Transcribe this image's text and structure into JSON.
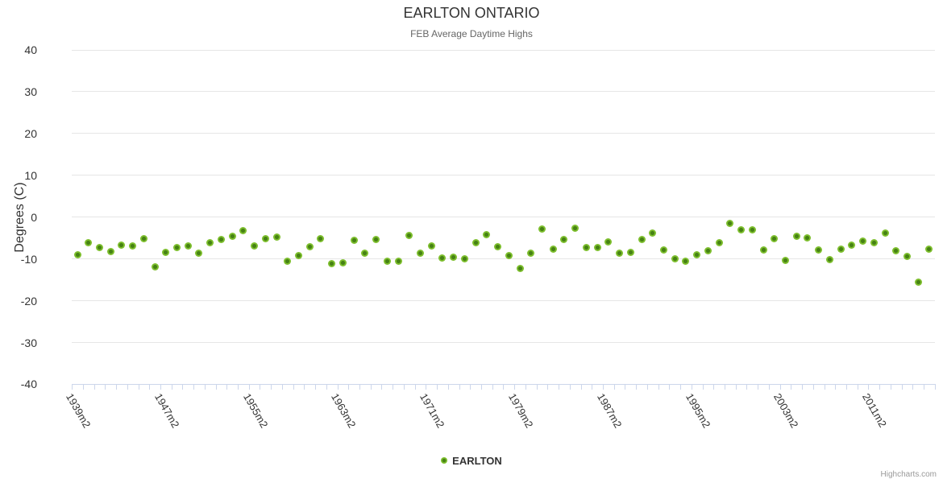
{
  "header": {
    "title": "EARLTON ONTARIO",
    "subtitle": "FEB Average Daytime Highs"
  },
  "legend": {
    "label": "EARLTON"
  },
  "credits": {
    "label": "Highcharts.com"
  },
  "colors": {
    "marker_outer": "#7DBE2D",
    "marker_inner": "#468214",
    "grid_line": "#E6E6E6",
    "axis_line": "#CCD6EB",
    "title_text": "#333333",
    "subtitle_text": "#666666",
    "axis_label_text": "#333333",
    "credits_text": "#999999"
  },
  "chart_data": {
    "type": "scatter",
    "title": "EARLTON ONTARIO",
    "subtitle": "FEB Average Daytime Highs",
    "xlabel": "",
    "ylabel": "Degrees (C)",
    "ylim": [
      -40,
      40
    ],
    "y_ticks": [
      40,
      30,
      20,
      10,
      0,
      -10,
      -20,
      -30,
      -40
    ],
    "grid": "horizontal",
    "legend_position": "bottom",
    "x_label_every": 8,
    "x_tick_labels": [
      "1939m2",
      "1947m2",
      "1955m2",
      "1963m2",
      "1971m2",
      "1979m2",
      "1987m2",
      "1995m2",
      "2003m2",
      "2011m2"
    ],
    "series": [
      {
        "name": "EARLTON",
        "categories": [
          "1939m2",
          "1940m2",
          "1941m2",
          "1942m2",
          "1943m2",
          "1944m2",
          "1945m2",
          "1946m2",
          "1947m2",
          "1948m2",
          "1949m2",
          "1950m2",
          "1951m2",
          "1952m2",
          "1953m2",
          "1954m2",
          "1955m2",
          "1956m2",
          "1957m2",
          "1958m2",
          "1959m2",
          "1960m2",
          "1961m2",
          "1962m2",
          "1963m2",
          "1964m2",
          "1965m2",
          "1966m2",
          "1967m2",
          "1968m2",
          "1969m2",
          "1970m2",
          "1971m2",
          "1972m2",
          "1973m2",
          "1974m2",
          "1975m2",
          "1976m2",
          "1977m2",
          "1978m2",
          "1979m2",
          "1980m2",
          "1981m2",
          "1982m2",
          "1983m2",
          "1984m2",
          "1985m2",
          "1986m2",
          "1987m2",
          "1988m2",
          "1989m2",
          "1990m2",
          "1991m2",
          "1992m2",
          "1993m2",
          "1994m2",
          "1995m2",
          "1996m2",
          "1997m2",
          "1998m2",
          "1999m2",
          "2000m2",
          "2001m2",
          "2002m2",
          "2003m2",
          "2004m2",
          "2005m2",
          "2006m2",
          "2007m2",
          "2008m2",
          "2009m2",
          "2010m2",
          "2011m2",
          "2012m2",
          "2013m2",
          "2014m2",
          "2015m2",
          "2016m2"
        ],
        "values": [
          -9.0,
          -6.2,
          -7.3,
          -8.3,
          -6.7,
          -6.9,
          -5.1,
          -11.9,
          -8.4,
          -7.3,
          -6.8,
          -8.7,
          -6.1,
          -5.4,
          -4.6,
          -3.2,
          -6.9,
          -5.2,
          -4.8,
          -10.5,
          -9.1,
          -7.0,
          -5.2,
          -11.1,
          -11.0,
          -5.6,
          -8.6,
          -5.3,
          -10.6,
          -10.5,
          -4.3,
          -8.7,
          -6.8,
          -9.7,
          -9.5,
          -10.0,
          -6.1,
          -4.2,
          -7.0,
          -9.1,
          -12.3,
          -8.6,
          -2.8,
          -7.6,
          -5.4,
          -2.7,
          -7.2,
          -7.2,
          -5.9,
          -8.7,
          -8.5,
          -5.4,
          -3.8,
          -7.9,
          -10.0,
          -10.5,
          -8.9,
          -8.1,
          -6.2,
          -1.5,
          -3.0,
          -3.1,
          -7.8,
          -5.2,
          -10.3,
          -4.5,
          -5.0,
          -7.9,
          -10.2,
          -7.6,
          -6.6,
          -5.7,
          -6.1,
          -3.7,
          -8.0,
          -9.3,
          -15.6,
          -7.6
        ]
      }
    ]
  }
}
